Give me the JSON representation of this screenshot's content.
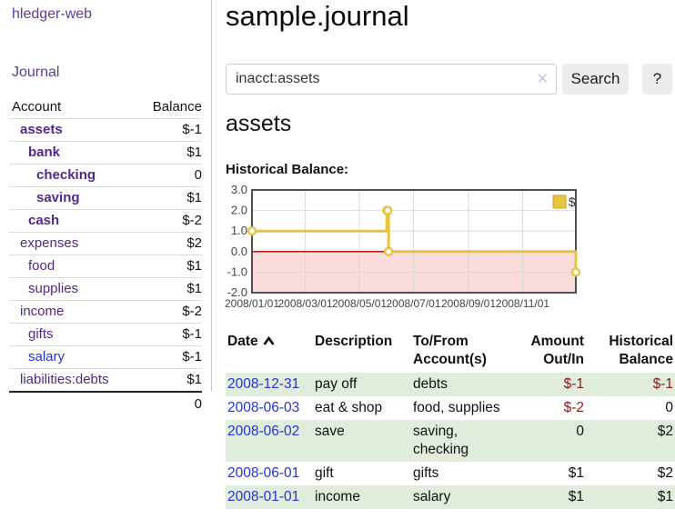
{
  "app": {
    "brand": "hledger-web",
    "nav_journal": "Journal"
  },
  "sidebar": {
    "col_account": "Account",
    "col_balance": "Balance",
    "accounts": [
      {
        "name": "assets",
        "depth": 1,
        "emph": true,
        "balance": "$-1",
        "neg": "strong",
        "blue": false
      },
      {
        "name": "bank",
        "depth": 2,
        "emph": true,
        "balance": "$1",
        "neg": "none",
        "blue": false
      },
      {
        "name": "checking",
        "depth": 3,
        "emph": true,
        "balance": "0",
        "neg": "none",
        "blue": false
      },
      {
        "name": "saving",
        "depth": 3,
        "emph": true,
        "balance": "$1",
        "neg": "none",
        "blue": false
      },
      {
        "name": "cash",
        "depth": 2,
        "emph": true,
        "balance": "$-2",
        "neg": "strong",
        "blue": false
      },
      {
        "name": "expenses",
        "depth": 1,
        "emph": false,
        "balance": "$2",
        "neg": "none",
        "blue": false
      },
      {
        "name": "food",
        "depth": 2,
        "emph": false,
        "balance": "$1",
        "neg": "none",
        "blue": false
      },
      {
        "name": "supplies",
        "depth": 2,
        "emph": false,
        "balance": "$1",
        "neg": "none",
        "blue": false
      },
      {
        "name": "income",
        "depth": 1,
        "emph": false,
        "balance": "$-2",
        "neg": "soft",
        "blue": false
      },
      {
        "name": "gifts",
        "depth": 2,
        "emph": false,
        "balance": "$-1",
        "neg": "soft",
        "blue": false
      },
      {
        "name": "salary",
        "depth": 2,
        "emph": false,
        "balance": "$-1",
        "neg": "soft",
        "blue": true
      },
      {
        "name": "liabilities:debts",
        "depth": 1,
        "emph": false,
        "balance": "$1",
        "neg": "none",
        "blue": false
      }
    ],
    "total": "0"
  },
  "header": {
    "title": "sample.journal"
  },
  "search": {
    "value": "inacct:assets",
    "clear_glyph": "✕",
    "button_label": "Search",
    "help_label": "?"
  },
  "account_page": {
    "heading": "assets",
    "chart_title": "Historical Balance:"
  },
  "chart_data": {
    "type": "line",
    "step": true,
    "title": "Historical Balance:",
    "series": [
      {
        "name": "$",
        "color": "#e7c43f",
        "points": [
          [
            "2008-01-01",
            1
          ],
          [
            "2008-06-01",
            2
          ],
          [
            "2008-06-02",
            2
          ],
          [
            "2008-06-03",
            0
          ],
          [
            "2008-12-31",
            -1
          ]
        ]
      }
    ],
    "xrange": [
      "2008-01-01",
      "2008-12-31"
    ],
    "ylim": [
      -2,
      3
    ],
    "yticks": [
      "3.0",
      "2.0",
      "1.0",
      "0.0",
      "-1.0",
      "-2.0"
    ],
    "xticks": [
      "2008/01/01",
      "2008/03/01",
      "2008/05/01",
      "2008/07/01",
      "2008/09/01",
      "2008/11/01"
    ],
    "legend": {
      "label": "$",
      "position": "top-right"
    },
    "grid": true,
    "colors": {
      "line": "#e7c43f",
      "marker_fill": "#ffffff",
      "negative_region": "#fbdcdc",
      "zero_line": "#a40000",
      "gridline": "#d9d9d9",
      "border": "#4f4f4f",
      "legend_square": "#e7c43f",
      "legend_square_border": "#c7a42e"
    }
  },
  "register": {
    "headers": {
      "date": "Date",
      "description": "Description",
      "accounts": "To/From Account(s)",
      "amount": "Amount Out/In",
      "balance": "Historical Balance"
    },
    "sort_direction": "ascending",
    "rows": [
      {
        "date": "2008-12-31",
        "description": "pay off",
        "accounts": "debts",
        "amount": "$-1",
        "amount_neg": true,
        "balance": "$-1",
        "balance_neg": true,
        "shade": true
      },
      {
        "date": "2008-06-03",
        "description": "eat & shop",
        "accounts": "food, supplies",
        "amount": "$-2",
        "amount_neg": true,
        "balance": "0",
        "balance_neg": false,
        "shade": false
      },
      {
        "date": "2008-06-02",
        "description": "save",
        "accounts": "saving, checking",
        "amount": "0",
        "amount_neg": false,
        "balance": "$2",
        "balance_neg": false,
        "shade": true
      },
      {
        "date": "2008-06-01",
        "description": "gift",
        "accounts": "gifts",
        "amount": "$1",
        "amount_neg": false,
        "balance": "$2",
        "balance_neg": false,
        "shade": false
      },
      {
        "date": "2008-01-01",
        "description": "income",
        "accounts": "salary",
        "amount": "$1",
        "amount_neg": false,
        "balance": "$1",
        "balance_neg": false,
        "shade": true
      }
    ]
  }
}
